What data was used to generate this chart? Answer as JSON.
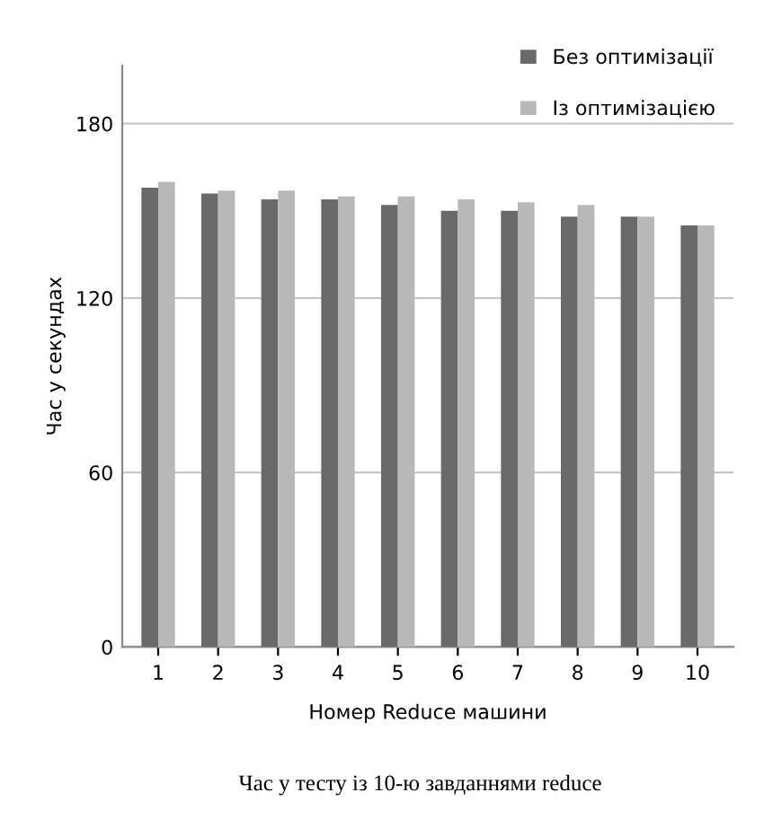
{
  "chart_data": {
    "type": "bar",
    "xlabel": "Номер Reduce машини",
    "ylabel": "Час у секундах",
    "categories": [
      "1",
      "2",
      "3",
      "4",
      "5",
      "6",
      "7",
      "8",
      "9",
      "10"
    ],
    "series": [
      {
        "name": "Без оптимізації",
        "color": "#696969",
        "values": [
          158,
          156,
          154,
          154,
          152,
          150,
          150,
          148,
          148,
          145
        ]
      },
      {
        "name": "Із оптимізацією",
        "color": "#b8b8b8",
        "values": [
          160,
          157,
          157,
          155,
          155,
          154,
          153,
          152,
          148,
          145
        ]
      }
    ],
    "ylim": [
      0,
      200
    ],
    "yticks": [
      0,
      60,
      120,
      180
    ],
    "grid": "y",
    "legend": "top right",
    "annotations": [
      "Час у тесту із 10-ю завданнями reduce"
    ]
  }
}
